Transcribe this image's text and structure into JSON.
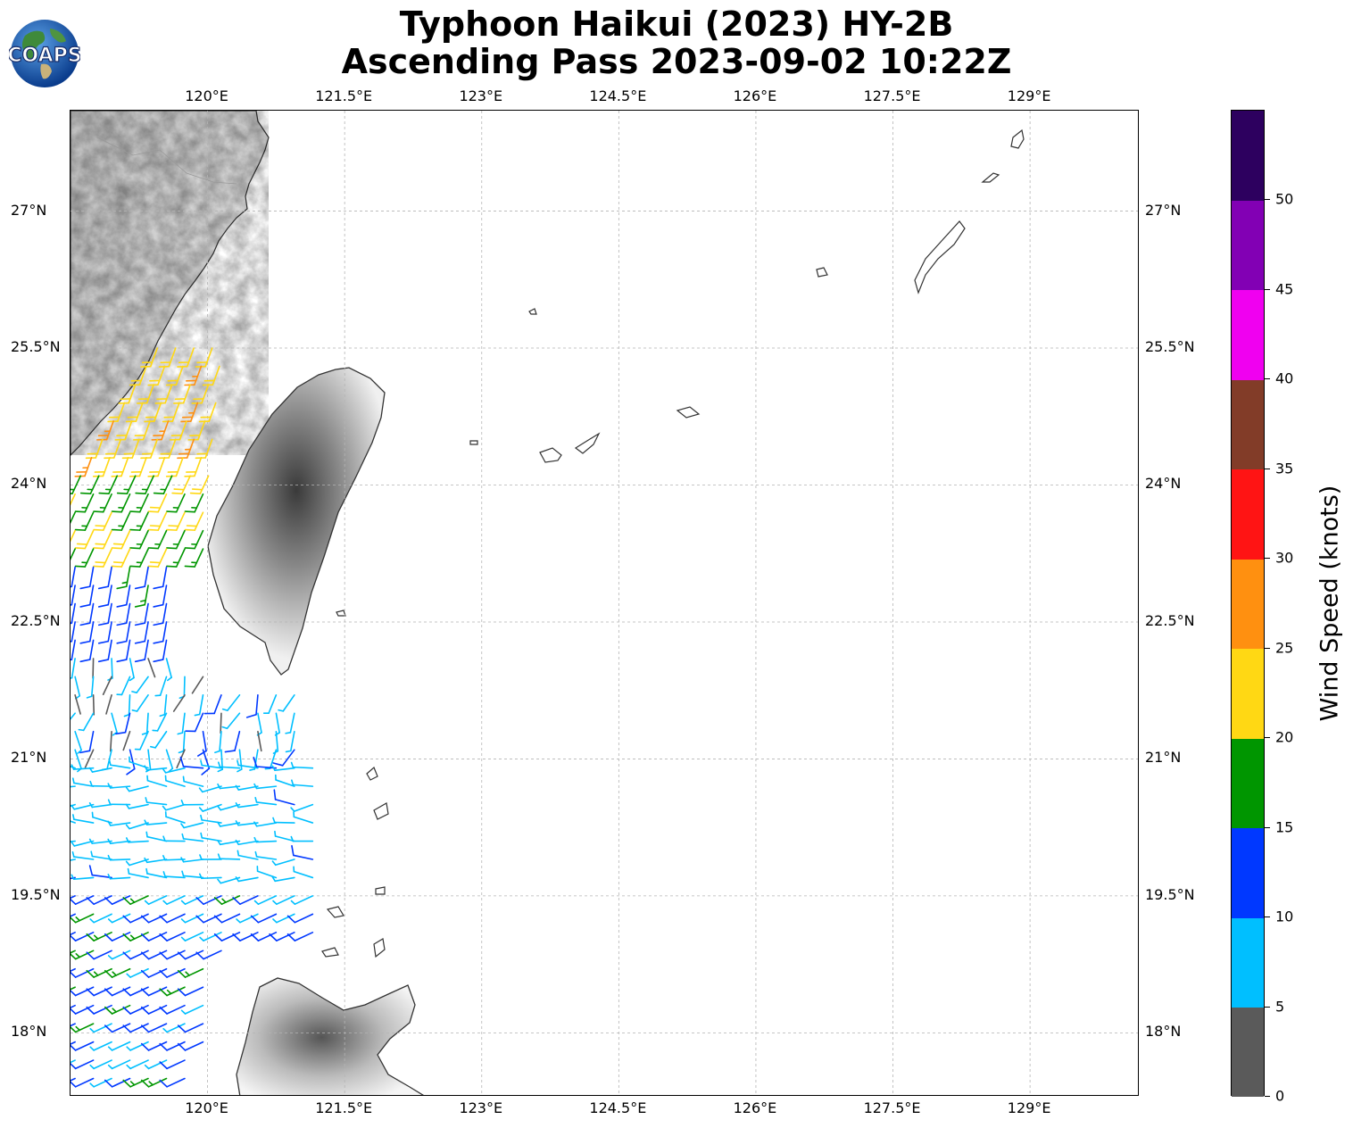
{
  "title": {
    "line1": "Typhoon Haikui (2023) HY-2B",
    "line2": "Ascending Pass 2023-09-02 10:22Z"
  },
  "logo": {
    "text": "COAPS",
    "icon": "globe-icon"
  },
  "map": {
    "lon_range": [
      118.5,
      130.2
    ],
    "lat_range": [
      17.3,
      28.1
    ],
    "lon_ticks": [
      "120°E",
      "121.5°E",
      "123°E",
      "124.5°E",
      "126°E",
      "127.5°E",
      "129°E"
    ],
    "lat_ticks": [
      "27°N",
      "25.5°N",
      "24°N",
      "22.5°N",
      "21°N",
      "19.5°N",
      "18°N"
    ],
    "gridlines": true,
    "coastline_color": "#333333",
    "terrain": "grayscale shaded relief"
  },
  "colorbar": {
    "label": "Wind Speed (knots)",
    "tick_labels": [
      "0",
      "5",
      "10",
      "15",
      "20",
      "25",
      "30",
      "35",
      "40",
      "45",
      "50"
    ],
    "bins": [
      {
        "min": 0,
        "max": 5,
        "color": "#5a5a5a"
      },
      {
        "min": 5,
        "max": 10,
        "color": "#00bfff"
      },
      {
        "min": 10,
        "max": 15,
        "color": "#0038ff"
      },
      {
        "min": 15,
        "max": 20,
        "color": "#009600"
      },
      {
        "min": 20,
        "max": 25,
        "color": "#ffd814"
      },
      {
        "min": 25,
        "max": 30,
        "color": "#ff9010"
      },
      {
        "min": 30,
        "max": 35,
        "color": "#ff1414"
      },
      {
        "min": 35,
        "max": 40,
        "color": "#823c28"
      },
      {
        "min": 40,
        "max": 45,
        "color": "#f000f0"
      },
      {
        "min": 45,
        "max": 50,
        "color": "#8200b4"
      },
      {
        "min": 50,
        "max": 55,
        "color": "#2d005f"
      }
    ]
  }
}
